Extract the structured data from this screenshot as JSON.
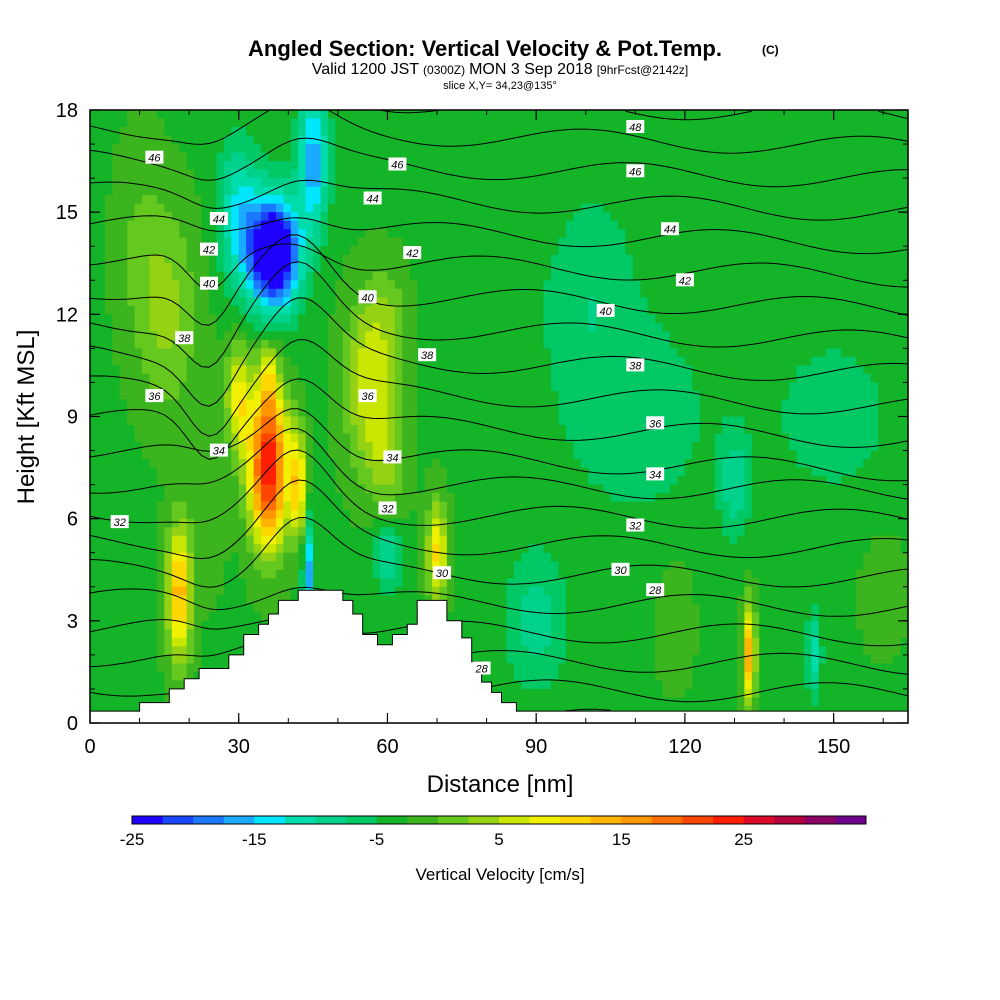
{
  "chart_data": {
    "type": "heatmap",
    "title_main": "Angled Section: Vertical Velocity & Pot.Temp.",
    "title_mark": "(C)",
    "subtitle_a": "Valid 1200 JST",
    "subtitle_b": "(0300Z)",
    "subtitle_c": "MON 3 Sep 2018",
    "subtitle_d": "[9hrFcst@2142z]",
    "slice_text": "slice X,Y= 34,23@135°",
    "xlabel": "Distance [nm]",
    "ylabel": "Height [Kft MSL]",
    "xlim": [
      0,
      165
    ],
    "ylim": [
      0,
      18
    ],
    "xticks": [
      0,
      30,
      60,
      90,
      120,
      150
    ],
    "yticks": [
      0,
      3,
      6,
      9,
      12,
      15,
      18
    ],
    "colorbar": {
      "label": "Vertical Velocity [cm/s]",
      "range": [
        -25,
        35
      ],
      "ticks": [
        -25,
        -15,
        -5,
        5,
        15,
        25
      ],
      "colors": [
        "#1e00ff",
        "#1946ff",
        "#1b78ff",
        "#1aaaff",
        "#00e6ff",
        "#00dcaa",
        "#00d28c",
        "#00c864",
        "#14b428",
        "#3cb41e",
        "#64c81e",
        "#96d214",
        "#c8e600",
        "#f0f000",
        "#ffd700",
        "#ffb400",
        "#ff9600",
        "#ff6e00",
        "#ff4600",
        "#ff1e00",
        "#dc0a28",
        "#b4003c",
        "#8c0064",
        "#6e008c"
      ]
    },
    "terrain": [
      [
        0,
        0.35
      ],
      [
        10,
        0.35
      ],
      [
        10,
        0.6
      ],
      [
        16,
        0.6
      ],
      [
        16,
        1.0
      ],
      [
        19,
        1.0
      ],
      [
        19,
        1.3
      ],
      [
        22,
        1.3
      ],
      [
        22,
        1.6
      ],
      [
        28,
        1.6
      ],
      [
        28,
        2.0
      ],
      [
        31,
        2.0
      ],
      [
        31,
        2.6
      ],
      [
        34,
        2.6
      ],
      [
        34,
        2.9
      ],
      [
        36,
        2.9
      ],
      [
        36,
        3.2
      ],
      [
        38,
        3.2
      ],
      [
        38,
        3.6
      ],
      [
        42,
        3.6
      ],
      [
        42,
        3.9
      ],
      [
        51,
        3.9
      ],
      [
        51,
        3.6
      ],
      [
        53,
        3.6
      ],
      [
        53,
        3.2
      ],
      [
        55,
        3.2
      ],
      [
        55,
        2.6
      ],
      [
        58,
        2.6
      ],
      [
        58,
        2.3
      ],
      [
        61,
        2.3
      ],
      [
        61,
        2.6
      ],
      [
        64,
        2.6
      ],
      [
        64,
        2.9
      ],
      [
        66,
        2.9
      ],
      [
        66,
        3.6
      ],
      [
        72,
        3.6
      ],
      [
        72,
        3.0
      ],
      [
        75,
        3.0
      ],
      [
        75,
        2.5
      ],
      [
        77,
        2.5
      ],
      [
        77,
        1.8
      ],
      [
        79,
        1.8
      ],
      [
        79,
        1.2
      ],
      [
        81,
        1.2
      ],
      [
        81,
        0.9
      ],
      [
        83,
        0.9
      ],
      [
        83,
        0.6
      ],
      [
        86,
        0.6
      ],
      [
        86,
        0.35
      ],
      [
        165,
        0.35
      ]
    ],
    "contour_labels": [
      {
        "text": "46",
        "x": 13,
        "y": 16.6
      },
      {
        "text": "44",
        "x": 26,
        "y": 14.8
      },
      {
        "text": "42",
        "x": 24,
        "y": 13.9
      },
      {
        "text": "40",
        "x": 24,
        "y": 12.9
      },
      {
        "text": "38",
        "x": 19,
        "y": 11.3
      },
      {
        "text": "36",
        "x": 13,
        "y": 9.6
      },
      {
        "text": "34",
        "x": 26,
        "y": 8.0
      },
      {
        "text": "32",
        "x": 6,
        "y": 5.9
      },
      {
        "text": "46",
        "x": 62,
        "y": 16.4
      },
      {
        "text": "44",
        "x": 57,
        "y": 15.4
      },
      {
        "text": "42",
        "x": 65,
        "y": 13.8
      },
      {
        "text": "40",
        "x": 56,
        "y": 12.5
      },
      {
        "text": "38",
        "x": 68,
        "y": 10.8
      },
      {
        "text": "36",
        "x": 56,
        "y": 9.6
      },
      {
        "text": "34",
        "x": 61,
        "y": 7.8
      },
      {
        "text": "32",
        "x": 60,
        "y": 6.3
      },
      {
        "text": "30",
        "x": 71,
        "y": 4.4
      },
      {
        "text": "28",
        "x": 79,
        "y": 1.6
      },
      {
        "text": "48",
        "x": 110,
        "y": 17.5
      },
      {
        "text": "46",
        "x": 110,
        "y": 16.2
      },
      {
        "text": "44",
        "x": 117,
        "y": 14.5
      },
      {
        "text": "42",
        "x": 120,
        "y": 13.0
      },
      {
        "text": "40",
        "x": 104,
        "y": 12.1
      },
      {
        "text": "38",
        "x": 110,
        "y": 10.5
      },
      {
        "text": "36",
        "x": 114,
        "y": 8.8
      },
      {
        "text": "34",
        "x": 114,
        "y": 7.3
      },
      {
        "text": "32",
        "x": 110,
        "y": 5.8
      },
      {
        "text": "30",
        "x": 107,
        "y": 4.5
      },
      {
        "text": "28",
        "x": 114,
        "y": 3.9
      }
    ]
  }
}
